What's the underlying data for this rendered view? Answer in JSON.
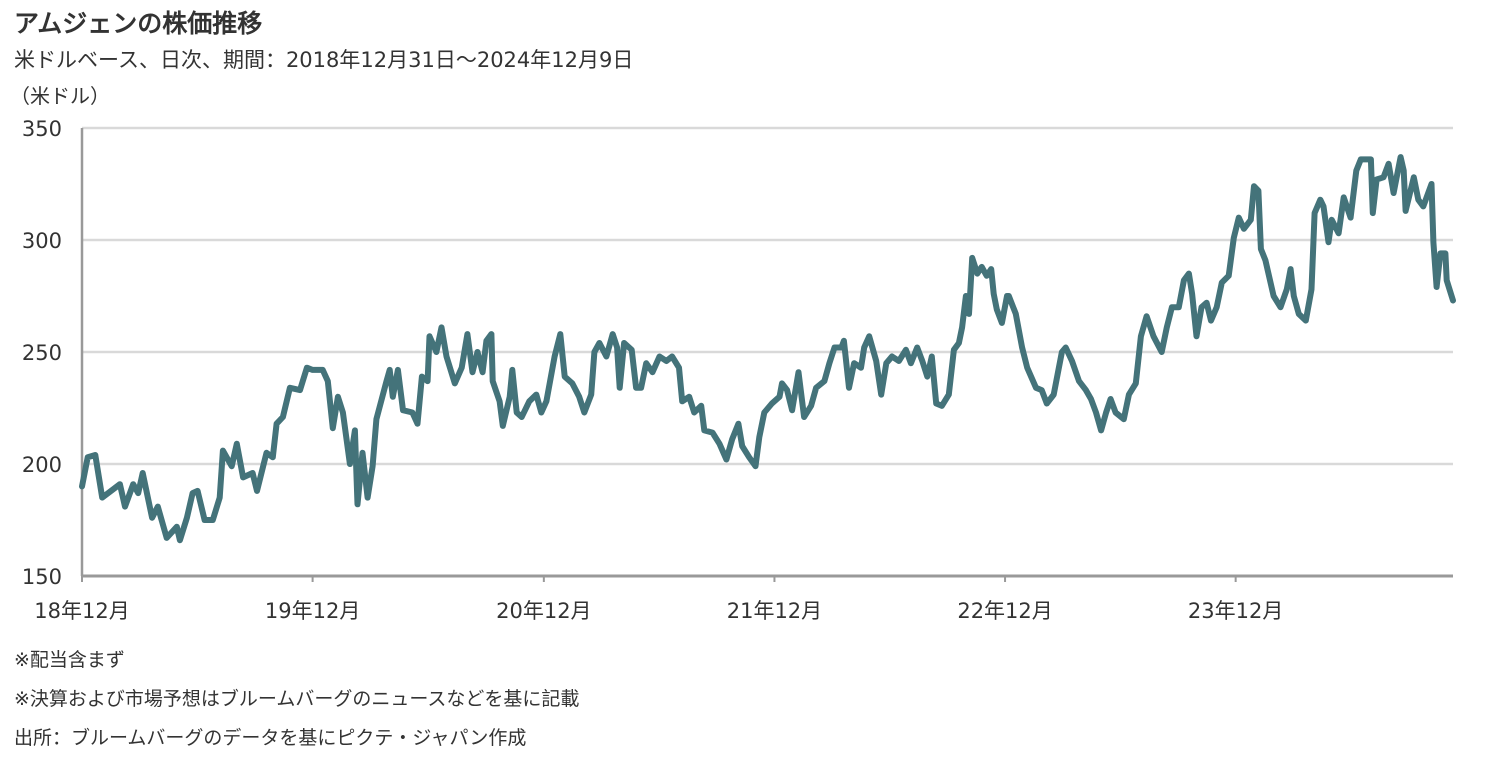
{
  "header": {
    "title": "アムジェンの株価推移",
    "subtitle": "米ドルベース、日次、期間：2018年12月31日～2024年12月9日",
    "unit": "（米ドル）"
  },
  "notes": [
    "※配当含まず",
    "※決算および市場予想はブルームバーグのニュースなどを基に記載",
    "出所：ブルームバーグのデータを基にピクテ・ジャパン作成"
  ],
  "chart_data": {
    "type": "line",
    "title": "アムジェンの株価推移",
    "ylabel": "（米ドル）",
    "xlabel": "",
    "ylim": [
      150,
      350
    ],
    "yticks": [
      150,
      200,
      250,
      300,
      350
    ],
    "xlim": [
      "2018-12-31",
      "2024-12-09"
    ],
    "xticks": [
      {
        "date": "2018-12-31",
        "label": "18年12月"
      },
      {
        "date": "2019-12-31",
        "label": "19年12月"
      },
      {
        "date": "2020-12-31",
        "label": "20年12月"
      },
      {
        "date": "2021-12-31",
        "label": "21年12月"
      },
      {
        "date": "2022-12-31",
        "label": "22年12月"
      },
      {
        "date": "2023-12-31",
        "label": "23年12月"
      }
    ],
    "grid": true,
    "line_color": "#44737a",
    "series": [
      {
        "points": [
          [
            "2018-12-31",
            190
          ],
          [
            "2019-01-09",
            203
          ],
          [
            "2019-01-21",
            204
          ],
          [
            "2019-02-01",
            185
          ],
          [
            "2019-03-01",
            191
          ],
          [
            "2019-03-09",
            181
          ],
          [
            "2019-03-22",
            191
          ],
          [
            "2019-03-30",
            187
          ],
          [
            "2019-04-06",
            196
          ],
          [
            "2019-04-21",
            176
          ],
          [
            "2019-04-30",
            181
          ],
          [
            "2019-05-14",
            167
          ],
          [
            "2019-05-30",
            172
          ],
          [
            "2019-06-04",
            166
          ],
          [
            "2019-06-15",
            176
          ],
          [
            "2019-06-24",
            187
          ],
          [
            "2019-07-02",
            188
          ],
          [
            "2019-07-13",
            175
          ],
          [
            "2019-07-26",
            175
          ],
          [
            "2019-08-06",
            185
          ],
          [
            "2019-08-11",
            206
          ],
          [
            "2019-08-25",
            199
          ],
          [
            "2019-09-02",
            209
          ],
          [
            "2019-09-12",
            194
          ],
          [
            "2019-09-27",
            196
          ],
          [
            "2019-10-04",
            188
          ],
          [
            "2019-10-19",
            205
          ],
          [
            "2019-10-29",
            203
          ],
          [
            "2019-11-04",
            218
          ],
          [
            "2019-11-14",
            221
          ],
          [
            "2019-11-25",
            234
          ],
          [
            "2019-12-11",
            233
          ],
          [
            "2019-12-22",
            243
          ],
          [
            "2019-12-31",
            242
          ],
          [
            "2020-01-16",
            242
          ],
          [
            "2020-01-24",
            237
          ],
          [
            "2020-02-01",
            216
          ],
          [
            "2020-02-09",
            230
          ],
          [
            "2020-02-17",
            223
          ],
          [
            "2020-02-28",
            200
          ],
          [
            "2020-03-07",
            215
          ],
          [
            "2020-03-11",
            182
          ],
          [
            "2020-03-19",
            205
          ],
          [
            "2020-03-27",
            185
          ],
          [
            "2020-04-04",
            199
          ],
          [
            "2020-04-10",
            220
          ],
          [
            "2020-04-26",
            237
          ],
          [
            "2020-05-01",
            242
          ],
          [
            "2020-05-06",
            230
          ],
          [
            "2020-05-14",
            242
          ],
          [
            "2020-05-22",
            224
          ],
          [
            "2020-06-06",
            223
          ],
          [
            "2020-06-14",
            218
          ],
          [
            "2020-06-21",
            239
          ],
          [
            "2020-06-30",
            237
          ],
          [
            "2020-07-03",
            257
          ],
          [
            "2020-07-14",
            250
          ],
          [
            "2020-07-22",
            261
          ],
          [
            "2020-07-30",
            248
          ],
          [
            "2020-08-12",
            236
          ],
          [
            "2020-08-23",
            243
          ],
          [
            "2020-09-01",
            258
          ],
          [
            "2020-09-09",
            241
          ],
          [
            "2020-09-17",
            250
          ],
          [
            "2020-09-25",
            241
          ],
          [
            "2020-10-01",
            255
          ],
          [
            "2020-10-09",
            258
          ],
          [
            "2020-10-11",
            237
          ],
          [
            "2020-10-22",
            228
          ],
          [
            "2020-10-27",
            217
          ],
          [
            "2020-11-07",
            230
          ],
          [
            "2020-11-11",
            242
          ],
          [
            "2020-11-18",
            223
          ],
          [
            "2020-11-26",
            221
          ],
          [
            "2020-12-08",
            228
          ],
          [
            "2020-12-19",
            231
          ],
          [
            "2020-12-27",
            223
          ],
          [
            "2021-01-04",
            228
          ],
          [
            "2021-01-17",
            248
          ],
          [
            "2021-01-26",
            258
          ],
          [
            "2021-02-02",
            239
          ],
          [
            "2021-02-14",
            236
          ],
          [
            "2021-02-25",
            230
          ],
          [
            "2021-03-05",
            223
          ],
          [
            "2021-03-16",
            231
          ],
          [
            "2021-03-21",
            250
          ],
          [
            "2021-03-29",
            254
          ],
          [
            "2021-04-09",
            248
          ],
          [
            "2021-04-19",
            258
          ],
          [
            "2021-04-26",
            252
          ],
          [
            "2021-04-30",
            234
          ],
          [
            "2021-05-07",
            254
          ],
          [
            "2021-05-19",
            251
          ],
          [
            "2021-05-26",
            234
          ],
          [
            "2021-06-03",
            234
          ],
          [
            "2021-06-11",
            245
          ],
          [
            "2021-06-21",
            241
          ],
          [
            "2021-07-02",
            248
          ],
          [
            "2021-07-13",
            246
          ],
          [
            "2021-07-22",
            248
          ],
          [
            "2021-08-02",
            243
          ],
          [
            "2021-08-07",
            228
          ],
          [
            "2021-08-18",
            230
          ],
          [
            "2021-08-26",
            223
          ],
          [
            "2021-09-06",
            226
          ],
          [
            "2021-09-11",
            215
          ],
          [
            "2021-09-24",
            214
          ],
          [
            "2021-10-05",
            209
          ],
          [
            "2021-10-16",
            202
          ],
          [
            "2021-10-25",
            211
          ],
          [
            "2021-11-04",
            218
          ],
          [
            "2021-11-10",
            208
          ],
          [
            "2021-11-21",
            203
          ],
          [
            "2021-12-01",
            199
          ],
          [
            "2021-12-07",
            212
          ],
          [
            "2021-12-15",
            223
          ],
          [
            "2021-12-27",
            227
          ],
          [
            "2022-01-08",
            230
          ],
          [
            "2022-01-12",
            236
          ],
          [
            "2022-01-20",
            233
          ],
          [
            "2022-01-28",
            224
          ],
          [
            "2022-02-07",
            241
          ],
          [
            "2022-02-16",
            221
          ],
          [
            "2022-02-27",
            226
          ],
          [
            "2022-03-07",
            234
          ],
          [
            "2022-03-20",
            237
          ],
          [
            "2022-03-28",
            245
          ],
          [
            "2022-04-05",
            252
          ],
          [
            "2022-04-16",
            252
          ],
          [
            "2022-04-20",
            255
          ],
          [
            "2022-04-28",
            234
          ],
          [
            "2022-05-06",
            245
          ],
          [
            "2022-05-17",
            243
          ],
          [
            "2022-05-22",
            252
          ],
          [
            "2022-05-30",
            257
          ],
          [
            "2022-06-10",
            246
          ],
          [
            "2022-06-18",
            231
          ],
          [
            "2022-06-26",
            245
          ],
          [
            "2022-07-05",
            248
          ],
          [
            "2022-07-16",
            246
          ],
          [
            "2022-07-27",
            251
          ],
          [
            "2022-08-04",
            245
          ],
          [
            "2022-08-14",
            252
          ],
          [
            "2022-08-22",
            246
          ],
          [
            "2022-08-30",
            239
          ],
          [
            "2022-09-06",
            248
          ],
          [
            "2022-09-13",
            227
          ],
          [
            "2022-09-22",
            226
          ],
          [
            "2022-10-03",
            231
          ],
          [
            "2022-10-11",
            251
          ],
          [
            "2022-10-19",
            254
          ],
          [
            "2022-10-24",
            261
          ],
          [
            "2022-10-30",
            275
          ],
          [
            "2022-11-04",
            267
          ],
          [
            "2022-11-09",
            292
          ],
          [
            "2022-11-17",
            285
          ],
          [
            "2022-11-24",
            288
          ],
          [
            "2022-12-02",
            284
          ],
          [
            "2022-12-09",
            287
          ],
          [
            "2022-12-13",
            276
          ],
          [
            "2022-12-18",
            269
          ],
          [
            "2022-12-26",
            263
          ],
          [
            "2023-01-03",
            275
          ],
          [
            "2023-01-06",
            275
          ],
          [
            "2023-01-17",
            267
          ],
          [
            "2023-01-27",
            252
          ],
          [
            "2023-02-04",
            243
          ],
          [
            "2023-02-18",
            234
          ],
          [
            "2023-02-27",
            233
          ],
          [
            "2023-03-07",
            227
          ],
          [
            "2023-03-18",
            231
          ],
          [
            "2023-03-31",
            250
          ],
          [
            "2023-04-06",
            252
          ],
          [
            "2023-04-16",
            246
          ],
          [
            "2023-04-27",
            237
          ],
          [
            "2023-05-08",
            233
          ],
          [
            "2023-05-16",
            229
          ],
          [
            "2023-05-24",
            223
          ],
          [
            "2023-06-01",
            215
          ],
          [
            "2023-06-09",
            223
          ],
          [
            "2023-06-16",
            229
          ],
          [
            "2023-06-24",
            223
          ],
          [
            "2023-07-07",
            220
          ],
          [
            "2023-07-15",
            231
          ],
          [
            "2023-07-26",
            236
          ],
          [
            "2023-08-03",
            257
          ],
          [
            "2023-08-12",
            266
          ],
          [
            "2023-08-23",
            257
          ],
          [
            "2023-09-05",
            250
          ],
          [
            "2023-09-13",
            261
          ],
          [
            "2023-09-21",
            270
          ],
          [
            "2023-10-02",
            270
          ],
          [
            "2023-10-10",
            282
          ],
          [
            "2023-10-18",
            285
          ],
          [
            "2023-10-23",
            276
          ],
          [
            "2023-10-30",
            257
          ],
          [
            "2023-11-07",
            270
          ],
          [
            "2023-11-15",
            272
          ],
          [
            "2023-11-22",
            264
          ],
          [
            "2023-12-01",
            270
          ],
          [
            "2023-12-09",
            281
          ],
          [
            "2023-12-20",
            284
          ],
          [
            "2023-12-28",
            301
          ],
          [
            "2024-01-05",
            310
          ],
          [
            "2024-01-13",
            305
          ],
          [
            "2024-01-24",
            309
          ],
          [
            "2024-01-29",
            324
          ],
          [
            "2024-02-05",
            322
          ],
          [
            "2024-02-09",
            296
          ],
          [
            "2024-02-16",
            291
          ],
          [
            "2024-02-29",
            275
          ],
          [
            "2024-03-11",
            270
          ],
          [
            "2024-03-21",
            278
          ],
          [
            "2024-03-27",
            287
          ],
          [
            "2024-04-01",
            275
          ],
          [
            "2024-04-09",
            267
          ],
          [
            "2024-04-20",
            264
          ],
          [
            "2024-04-29",
            278
          ],
          [
            "2024-05-04",
            312
          ],
          [
            "2024-05-13",
            318
          ],
          [
            "2024-05-18",
            315
          ],
          [
            "2024-05-26",
            299
          ],
          [
            "2024-05-31",
            309
          ],
          [
            "2024-06-11",
            303
          ],
          [
            "2024-06-19",
            319
          ],
          [
            "2024-06-30",
            310
          ],
          [
            "2024-07-09",
            331
          ],
          [
            "2024-07-16",
            336
          ],
          [
            "2024-07-24",
            336
          ],
          [
            "2024-08-01",
            336
          ],
          [
            "2024-08-04",
            312
          ],
          [
            "2024-08-10",
            327
          ],
          [
            "2024-08-21",
            328
          ],
          [
            "2024-08-29",
            334
          ],
          [
            "2024-09-06",
            321
          ],
          [
            "2024-09-17",
            337
          ],
          [
            "2024-09-22",
            331
          ],
          [
            "2024-09-25",
            313
          ],
          [
            "2024-10-08",
            328
          ],
          [
            "2024-10-15",
            318
          ],
          [
            "2024-10-23",
            315
          ],
          [
            "2024-11-05",
            325
          ],
          [
            "2024-11-08",
            299
          ],
          [
            "2024-11-13",
            279
          ],
          [
            "2024-11-19",
            294
          ],
          [
            "2024-11-27",
            294
          ],
          [
            "2024-11-29",
            282
          ],
          [
            "2024-12-09",
            273
          ]
        ]
      }
    ]
  }
}
